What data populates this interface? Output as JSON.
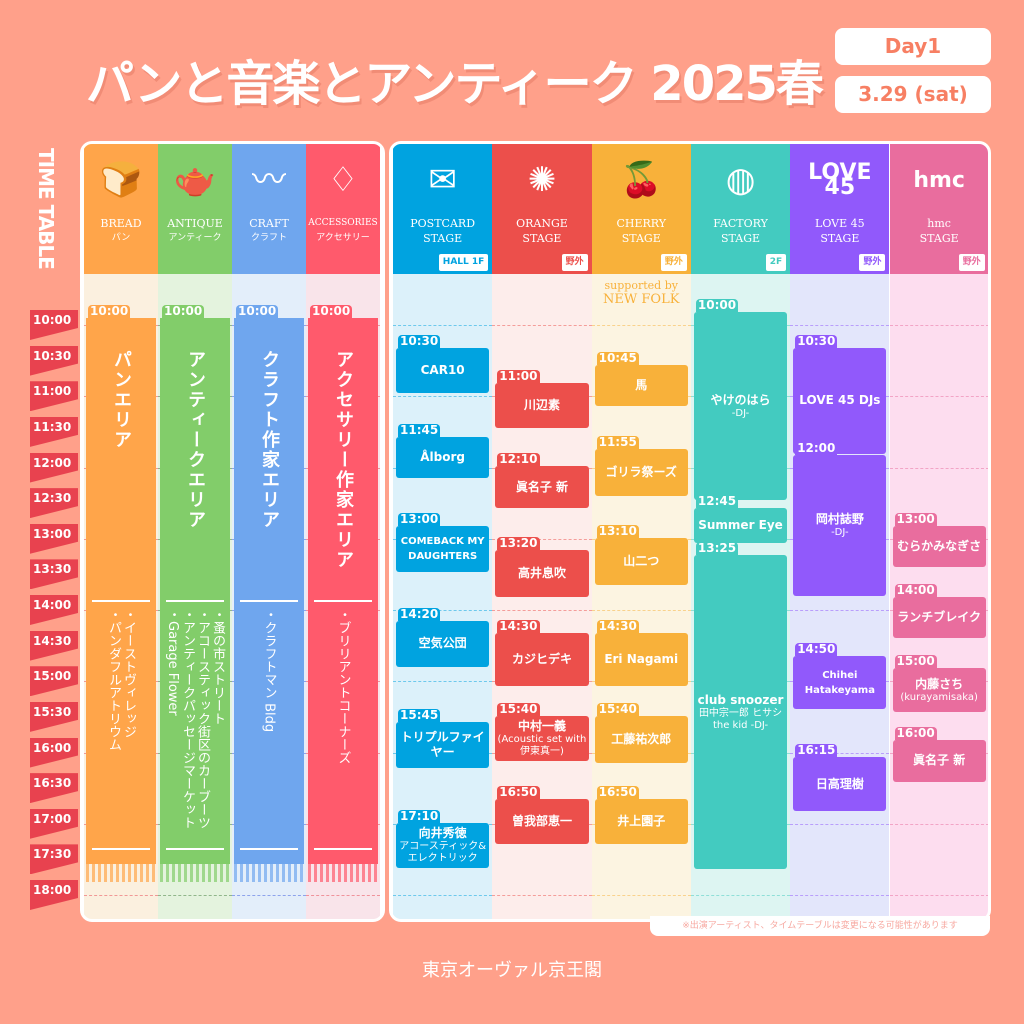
{
  "title": "パンと音楽とアンティーク 2025春",
  "day": "Day1",
  "date": "3.29 (sat)",
  "timetable_label": "TIME TABLE",
  "times": [
    "10:00",
    "10:30",
    "11:00",
    "11:30",
    "12:00",
    "12:30",
    "13:00",
    "13:30",
    "14:00",
    "14:30",
    "15:00",
    "15:30",
    "16:00",
    "16:30",
    "17:00",
    "17:30",
    "18:00"
  ],
  "areas": [
    {
      "en": "BREAD",
      "jp": "パン",
      "icon": "bread-icon",
      "glyph": "🍞",
      "color": "#FFA54A",
      "tint": "#FBF0DF",
      "line": "#E8424F",
      "start": "10:00",
      "name": "パンエリア",
      "shops": [
        "・イーストヴィレッジ",
        "・パンダフルアトリウム"
      ]
    },
    {
      "en": "ANTIQUE",
      "jp": "アンティーク",
      "icon": "teapot-icon",
      "glyph": "🫖",
      "color": "#82CD6A",
      "tint": "#E4F3DE",
      "line": "#3F7A3A",
      "start": "10:00",
      "name": "アンティークエリア",
      "shops": [
        "・蚤の市ストリート",
        "・アコースティック街区のカーブーツ",
        "・アンティークパッセージマーケット",
        "・Garage Flower"
      ]
    },
    {
      "en": "CRAFT",
      "jp": "クラフト",
      "icon": "craft-icon",
      "glyph": "〰",
      "color": "#6FA6EE",
      "tint": "#E3EEFA",
      "line": "#3A5BE0",
      "start": "10:00",
      "name": "クラフト作家エリア",
      "shops": [
        "・クラフトマン Bldg"
      ]
    },
    {
      "en": "ACCESSORIES",
      "jp": "アクセサリー",
      "icon": "earrings-icon",
      "glyph": "♢",
      "color": "#FF5A6C",
      "tint": "#F9E4EA",
      "line": "#E8424F",
      "start": "10:00",
      "name": "アクセサリー作家エリア",
      "shops": [
        "・ブリリアントコーナーズ"
      ]
    }
  ],
  "stages": [
    {
      "name": "POSTCARD",
      "sub": "STAGE",
      "badge": "HALL 1F",
      "icon": "postcard-icon",
      "glyph": "✉",
      "color": "#00A3E0",
      "tint": "#DCF1FA",
      "events": [
        {
          "time": "10:30",
          "title": "CAR10"
        },
        {
          "time": "11:45",
          "title": "Ålborg"
        },
        {
          "time": "13:00",
          "title": "COMEBACK MY DAUGHTERS"
        },
        {
          "time": "14:20",
          "title": "空気公団"
        },
        {
          "time": "15:45",
          "title": "トリプルファイヤー"
        },
        {
          "time": "17:10",
          "title": "向井秀徳",
          "note": "アコースティック&エレクトリック"
        }
      ]
    },
    {
      "name": "ORANGE",
      "sub": "STAGE",
      "badge": "野外",
      "icon": "orange-slice-icon",
      "glyph": "✺",
      "color": "#EC4F4B",
      "tint": "#FDEDEB",
      "events": [
        {
          "time": "11:00",
          "title": "川辺素"
        },
        {
          "time": "12:10",
          "title": "眞名子 新"
        },
        {
          "time": "13:20",
          "title": "高井息吹"
        },
        {
          "time": "14:30",
          "title": "カジヒデキ"
        },
        {
          "time": "15:40",
          "title": "中村一義",
          "note": "(Acoustic set with 伊東真一)"
        },
        {
          "time": "16:50",
          "title": "曽我部恵一"
        }
      ]
    },
    {
      "name": "CHERRY",
      "sub": "STAGE",
      "badge": "野外",
      "icon": "cherry-icon",
      "glyph": "🍒",
      "color": "#F8B13A",
      "tint": "#FCF4E1",
      "supported": "supported by",
      "sponsor": "NEW FOLK",
      "events": [
        {
          "time": "10:45",
          "title": "馬"
        },
        {
          "time": "11:55",
          "title": "ゴリラ祭ーズ"
        },
        {
          "time": "13:10",
          "title": "山二つ"
        },
        {
          "time": "14:30",
          "title": "Eri Nagami"
        },
        {
          "time": "15:40",
          "title": "工藤祐次郎"
        },
        {
          "time": "16:50",
          "title": "井上園子"
        }
      ]
    },
    {
      "name": "FACTORY",
      "sub": "STAGE",
      "badge": "2F",
      "icon": "disco-ball-icon",
      "glyph": "◍",
      "color": "#43CBC0",
      "tint": "#DDF5F2",
      "events": [
        {
          "time": "10:00",
          "title": "やけのはら",
          "note": "-DJ-"
        },
        {
          "time": "12:45",
          "title": "Summer Eye"
        },
        {
          "time": "13:25",
          "title": "club snoozer",
          "note": "田中宗一郎 ヒサシ the kid -DJ-"
        }
      ]
    },
    {
      "name": "LOVE 45",
      "sub": "STAGE",
      "badge": "野外",
      "icon": "love45-logo-icon",
      "glyph": "LOVE 45",
      "color": "#9159FB",
      "tint": "#E3E6FB",
      "events": [
        {
          "time": "10:30",
          "title": "LOVE 45 DJs"
        },
        {
          "time": "12:00",
          "title": "岡村誌野",
          "note": "-DJ-"
        },
        {
          "time": "14:50",
          "title": "Chihei Hatakeyama"
        },
        {
          "time": "16:15",
          "title": "日高理樹"
        }
      ]
    },
    {
      "name": "hmc",
      "sub": "STAGE",
      "badge": "野外",
      "icon": "hmc-logo-icon",
      "glyph": "hmc",
      "color": "#E96D9E",
      "tint": "#FDDDEF",
      "events": [
        {
          "time": "13:00",
          "title": "むらかみなぎさ"
        },
        {
          "time": "14:00",
          "title": "ランチブレイク"
        },
        {
          "time": "15:00",
          "title": "内藤さち",
          "note": "(kurayamisaka)"
        },
        {
          "time": "16:00",
          "title": "眞名子 新"
        }
      ]
    }
  ],
  "note": "※出演アーティスト、タイムテーブルは変更になる可能性があります",
  "venue": "東京オーヴァル京王閣"
}
